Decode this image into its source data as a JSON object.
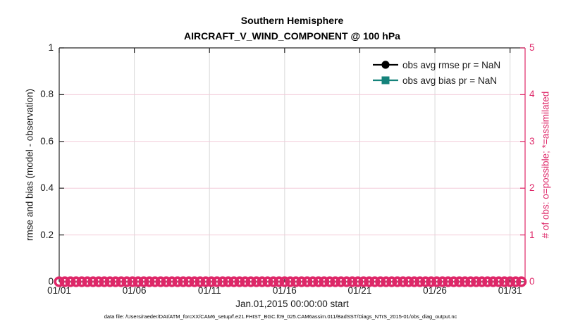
{
  "figure": {
    "title": "Southern Hemisphere",
    "subtitle": "AIRCRAFT_V_WIND_COMPONENT @ 100 hPa",
    "footer": "data file: /Users/raeder/DAI/ATM_forcXX/CAM6_setup/f.e21.FHIST_BGC.f09_025.CAM6assim.011/BadSST/Diags_NTrS_2015-01/obs_diag_output.nc"
  },
  "legend": [
    {
      "label": "obs avg rmse pr = NaN",
      "marker": "circle",
      "color": "#000000"
    },
    {
      "label": "obs avg bias pr = NaN",
      "marker": "square",
      "color": "#15837B"
    }
  ],
  "colors": {
    "crimson": "#DE2768",
    "teal": "#15837B",
    "black_axis": "#262626",
    "grid_gray": "#D9D9D9",
    "grid_pink": "#F2CBD9",
    "background": "#FFFFFF"
  },
  "chart_data": {
    "type": "line",
    "title": "Southern Hemisphere",
    "subtitle": "AIRCRAFT_V_WIND_COMPONENT @ 100 hPa",
    "xlabel": "Jan.01,2015 00:00:00 start",
    "ylabel_left": "rmse and bias (model - observation)",
    "ylabel_right": "# of obs: o=possible; *=assimilated",
    "x_tick_labels": [
      "01/01",
      "01/06",
      "01/11",
      "01/16",
      "01/21",
      "01/26",
      "01/31"
    ],
    "x_tick_days": [
      0,
      5,
      10,
      15,
      20,
      25,
      30
    ],
    "x_range_days": [
      0,
      31
    ],
    "ylim_left": [
      0,
      1
    ],
    "left_tick_values": [
      0,
      0.2,
      0.4,
      0.6,
      0.8,
      1
    ],
    "left_tick_labels": [
      "0",
      "0.2",
      "0.4",
      "0.6",
      "0.8",
      "1"
    ],
    "ylim_right": [
      0,
      5
    ],
    "right_tick_values": [
      0,
      1,
      2,
      3,
      4,
      5
    ],
    "right_tick_labels": [
      "0",
      "1",
      "2",
      "3",
      "4",
      "5"
    ],
    "grid": true,
    "legend_position": "top-right-inside",
    "series": [
      {
        "name": "obs avg rmse pr = NaN",
        "axis": "left",
        "marker": "circle",
        "color": "#000000",
        "values": "NaN",
        "note": "no curve plotted"
      },
      {
        "name": "obs avg bias pr = NaN",
        "axis": "left",
        "marker": "square",
        "color": "#15837B",
        "values": "NaN",
        "note": "no curve plotted"
      },
      {
        "name": "# of obs possible (o markers)",
        "axis": "right",
        "marker": "o",
        "color": "#DE2768",
        "constant_value": 0,
        "x_span_days": [
          0,
          31
        ],
        "sample_interval_days": 0.375,
        "note": "dense overlapping circle markers at 0 across the entire x range"
      }
    ]
  }
}
